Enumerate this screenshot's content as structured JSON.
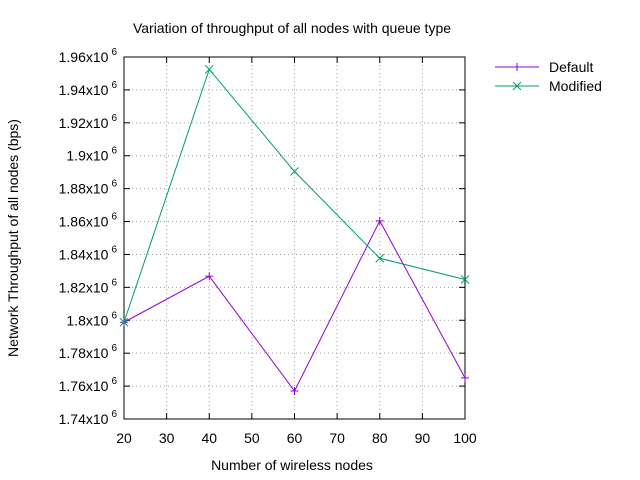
{
  "chart_data": {
    "type": "line",
    "title": "Variation of throughput of all nodes with queue type",
    "xlabel": "Number of wireless nodes",
    "ylabel": "Network Throughput of all nodes (bps)",
    "xlim": [
      20,
      100
    ],
    "ylim": [
      1740000,
      1960000
    ],
    "xticks": [
      20,
      30,
      40,
      50,
      60,
      70,
      80,
      90,
      100
    ],
    "xtick_labels": [
      "20",
      "30",
      "40",
      "50",
      "60",
      "70",
      "80",
      "90",
      "100"
    ],
    "yticks": [
      1740000,
      1760000,
      1780000,
      1800000,
      1820000,
      1840000,
      1860000,
      1880000,
      1900000,
      1920000,
      1940000,
      1960000
    ],
    "ytick_labels": [
      {
        "base": "1.74x10",
        "exp": "6"
      },
      {
        "base": "1.76x10",
        "exp": "6"
      },
      {
        "base": "1.78x10",
        "exp": "6"
      },
      {
        "base": "1.8x10",
        "exp": "6"
      },
      {
        "base": "1.82x10",
        "exp": "6"
      },
      {
        "base": "1.84x10",
        "exp": "6"
      },
      {
        "base": "1.86x10",
        "exp": "6"
      },
      {
        "base": "1.88x10",
        "exp": "6"
      },
      {
        "base": "1.9x10",
        "exp": "6"
      },
      {
        "base": "1.92x10",
        "exp": "6"
      },
      {
        "base": "1.94x10",
        "exp": "6"
      },
      {
        "base": "1.96x10",
        "exp": "6"
      }
    ],
    "grid": true,
    "legend_position": "top-right outside",
    "series": [
      {
        "name": "Default",
        "color": "#9400d3",
        "marker": "plus",
        "x": [
          20,
          40,
          60,
          80,
          100
        ],
        "y": [
          1798800,
          1826800,
          1757000,
          1860400,
          1765000
        ]
      },
      {
        "name": "Modified",
        "color": "#009e73",
        "marker": "cross",
        "x": [
          20,
          40,
          60,
          80,
          100
        ],
        "y": [
          1798800,
          1952500,
          1890400,
          1837700,
          1824800
        ]
      }
    ]
  }
}
